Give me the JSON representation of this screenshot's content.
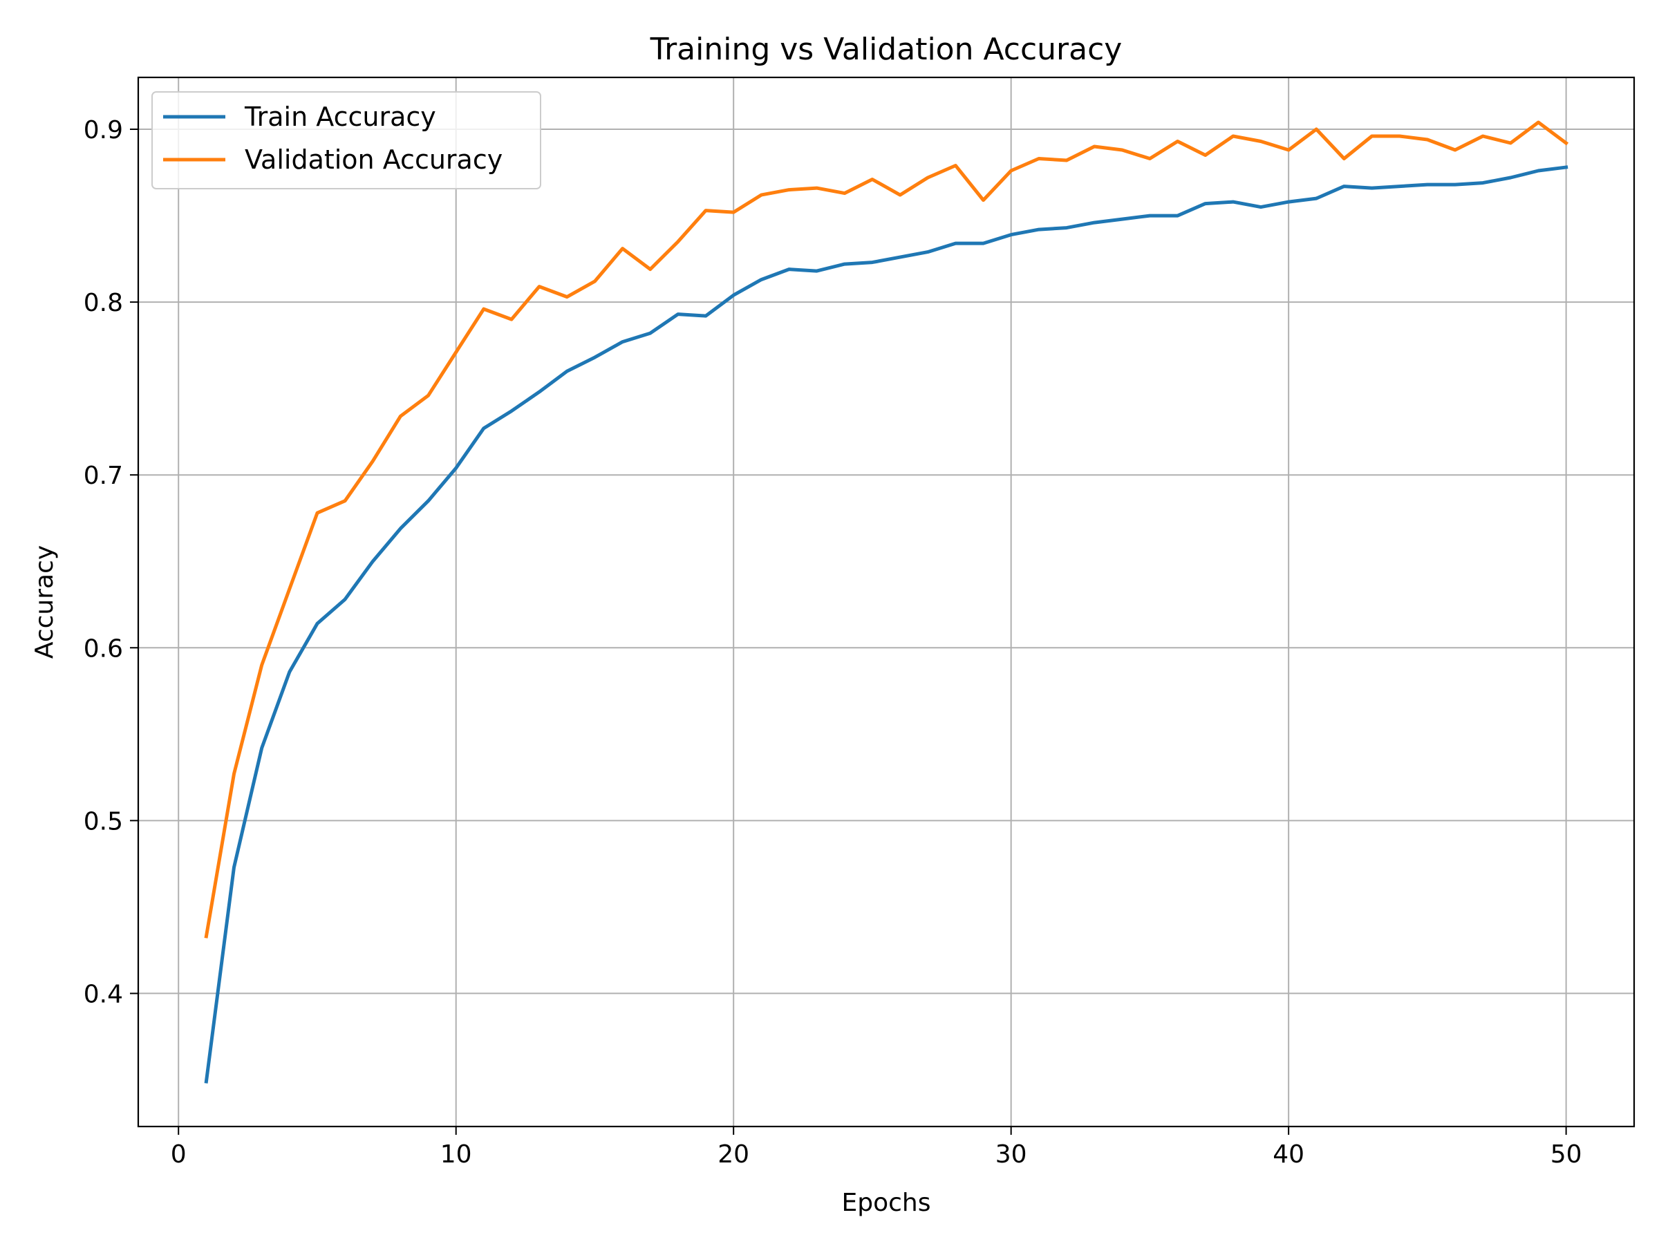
{
  "chart_data": {
    "type": "line",
    "title": "Training vs Validation Accuracy",
    "xlabel": "Epochs",
    "ylabel": "Accuracy",
    "xlim": [
      -1.45,
      52.45
    ],
    "ylim": [
      0.323,
      0.93
    ],
    "xticks": [
      0,
      10,
      20,
      30,
      40,
      50
    ],
    "yticks": [
      0.4,
      0.5,
      0.6,
      0.7,
      0.8,
      0.9
    ],
    "xtick_labels": [
      "0",
      "10",
      "20",
      "30",
      "40",
      "50"
    ],
    "ytick_labels": [
      "0.4",
      "0.5",
      "0.6",
      "0.7",
      "0.8",
      "0.9"
    ],
    "grid": true,
    "legend_position": "upper-left",
    "x": [
      1,
      2,
      3,
      4,
      5,
      6,
      7,
      8,
      9,
      10,
      11,
      12,
      13,
      14,
      15,
      16,
      17,
      18,
      19,
      20,
      21,
      22,
      23,
      24,
      25,
      26,
      27,
      28,
      29,
      30,
      31,
      32,
      33,
      34,
      35,
      36,
      37,
      38,
      39,
      40,
      41,
      42,
      43,
      44,
      45,
      46,
      47,
      48,
      49,
      50
    ],
    "series": [
      {
        "name": "Train Accuracy",
        "color": "#1f77b4",
        "values": [
          0.349,
          0.473,
          0.542,
          0.586,
          0.614,
          0.628,
          0.65,
          0.669,
          0.685,
          0.704,
          0.727,
          0.737,
          0.748,
          0.76,
          0.768,
          0.777,
          0.782,
          0.793,
          0.792,
          0.804,
          0.813,
          0.819,
          0.818,
          0.822,
          0.823,
          0.826,
          0.829,
          0.834,
          0.834,
          0.839,
          0.842,
          0.843,
          0.846,
          0.848,
          0.85,
          0.85,
          0.857,
          0.858,
          0.855,
          0.858,
          0.86,
          0.867,
          0.866,
          0.867,
          0.868,
          0.868,
          0.869,
          0.872,
          0.876,
          0.878
        ]
      },
      {
        "name": "Validation Accuracy",
        "color": "#ff7f0e",
        "values": [
          0.433,
          0.527,
          0.59,
          0.634,
          0.678,
          0.685,
          0.708,
          0.734,
          0.746,
          0.771,
          0.796,
          0.79,
          0.809,
          0.803,
          0.812,
          0.831,
          0.819,
          0.835,
          0.853,
          0.852,
          0.862,
          0.865,
          0.866,
          0.863,
          0.871,
          0.862,
          0.872,
          0.879,
          0.859,
          0.876,
          0.883,
          0.882,
          0.89,
          0.888,
          0.883,
          0.893,
          0.885,
          0.896,
          0.893,
          0.888,
          0.9,
          0.883,
          0.896,
          0.896,
          0.894,
          0.888,
          0.896,
          0.892,
          0.904,
          0.892
        ]
      }
    ]
  }
}
